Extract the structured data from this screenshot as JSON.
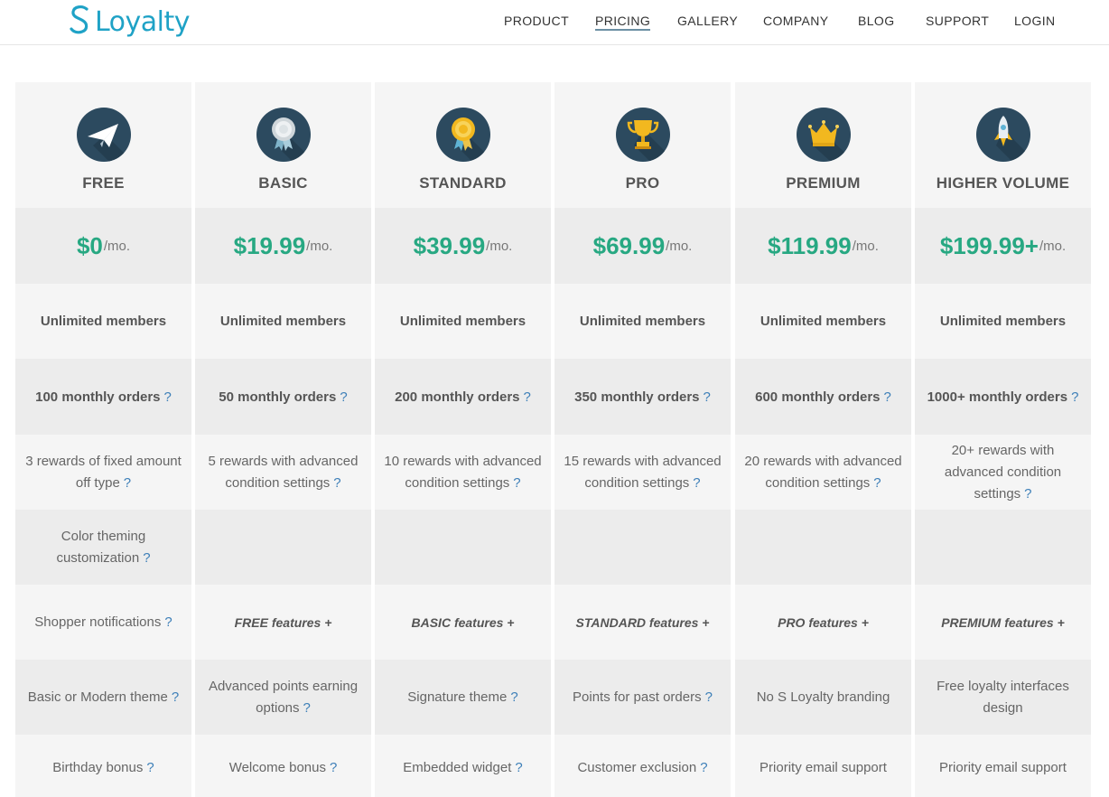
{
  "brand": {
    "name": "Loyalty",
    "color": "#1fa2c6"
  },
  "nav": {
    "items": [
      {
        "label": "PRODUCT"
      },
      {
        "label": "PRICING",
        "active": true
      },
      {
        "label": "GALLERY"
      },
      {
        "label": "COMPANY"
      },
      {
        "label": "BLOG"
      },
      {
        "label": "SUPPORT"
      },
      {
        "label": "LOGIN"
      }
    ]
  },
  "colors": {
    "price": "#27a882",
    "icon_bg": "#2c4a5f",
    "help": "#3d7fb8"
  },
  "help_mark": "?",
  "plans": [
    {
      "name": "FREE",
      "icon": "paper-plane-icon",
      "price": "$0",
      "per": "/mo.",
      "members": "Unlimited members",
      "orders": "100 monthly orders",
      "rewards": "3 rewards of fixed amount off type",
      "theming": "Color theming customization",
      "notifications": "Shopper notifications",
      "theme": "Basic or Modern theme",
      "bonus": "Birthday bonus"
    },
    {
      "name": "BASIC",
      "icon": "silver-medal-icon",
      "price": "$19.99",
      "per": "/mo.",
      "members": "Unlimited members",
      "orders": "50 monthly orders",
      "rewards": "5 rewards with advanced condition settings",
      "theming": "",
      "notifications": "FREE features +",
      "theme": "Advanced points earning options",
      "bonus": "Welcome bonus"
    },
    {
      "name": "STANDARD",
      "icon": "gold-medal-icon",
      "price": "$39.99",
      "per": "/mo.",
      "members": "Unlimited members",
      "orders": "200 monthly orders",
      "rewards": "10 rewards with advanced condition settings",
      "theming": "",
      "notifications": "BASIC features +",
      "theme": "Signature theme",
      "bonus": "Embedded widget"
    },
    {
      "name": "PRO",
      "icon": "trophy-icon",
      "price": "$69.99",
      "per": "/mo.",
      "members": "Unlimited members",
      "orders": "350 monthly orders",
      "rewards": "15 rewards with advanced condition settings",
      "theming": "",
      "notifications": "STANDARD features +",
      "theme": "Points for past orders",
      "bonus": "Customer exclusion"
    },
    {
      "name": "PREMIUM",
      "icon": "crown-icon",
      "price": "$119.99",
      "per": "/mo.",
      "members": "Unlimited members",
      "orders": "600 monthly orders",
      "rewards": "20 rewards with advanced condition settings",
      "theming": "",
      "notifications": "PRO features +",
      "theme": "No S Loyalty branding",
      "bonus": "Priority email support"
    },
    {
      "name": "HIGHER VOLUME",
      "icon": "rocket-icon",
      "price": "$199.99+",
      "per": "/mo.",
      "members": "Unlimited members",
      "orders": "1000+ monthly orders",
      "rewards": "20+ rewards with advanced condition settings",
      "theming": "",
      "notifications": "PREMIUM features +",
      "theme": "Free loyalty interfaces design",
      "bonus": "Priority email support"
    }
  ]
}
